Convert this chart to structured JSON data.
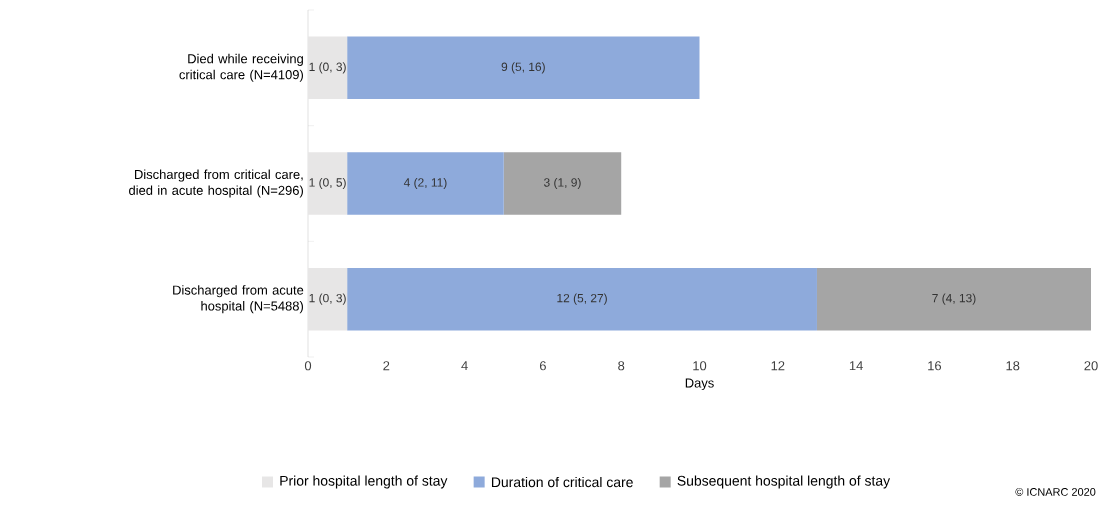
{
  "chart_data": {
    "type": "bar",
    "orientation": "horizontal",
    "stacked": true,
    "xlabel": "Days",
    "categories": [
      "Died while receiving critical care (N=4109)",
      "Discharged from critical care, died in acute hospital (N=296)",
      "Discharged from acute hospital (N=5488)"
    ],
    "series": [
      {
        "name": "Prior hospital length of stay",
        "color": "#e7e6e6",
        "values": [
          1,
          1,
          1
        ],
        "value_labels": [
          "1 (0, 3)",
          "1 (0, 5)",
          "1 (0, 3)"
        ]
      },
      {
        "name": "Duration of critical care",
        "color": "#8eaadb",
        "values": [
          9,
          4,
          12
        ],
        "value_labels": [
          "9 (5, 16)",
          "4 (2, 11)",
          "12 (5, 27)"
        ]
      },
      {
        "name": "Subsequent hospital length of stay",
        "color": "#a5a5a5",
        "values": [
          null,
          3,
          7
        ],
        "value_labels": [
          null,
          "3 (1, 9)",
          "7 (4, 13)"
        ]
      }
    ],
    "xlim": [
      0,
      20
    ],
    "xticks": [
      0,
      2,
      4,
      6,
      8,
      10,
      12,
      14,
      16,
      18,
      20
    ],
    "legend": "bottom",
    "annotations": [
      "© ICNARC 2020"
    ]
  }
}
